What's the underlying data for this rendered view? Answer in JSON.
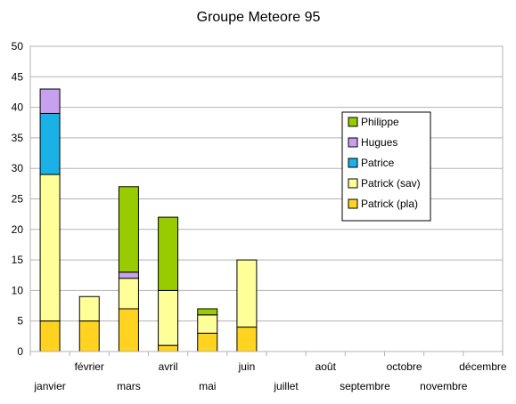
{
  "chart_data": {
    "type": "bar",
    "stacked": true,
    "title": "Groupe Meteore 95",
    "xlabel": "",
    "ylabel": "",
    "ylim": [
      0,
      50
    ],
    "yticks": [
      "0",
      "5",
      "10",
      "15",
      "20",
      "25",
      "30",
      "35",
      "40",
      "45",
      "50"
    ],
    "grid": true,
    "legend_position": "right",
    "categories": [
      "janvier",
      "février",
      "mars",
      "avril",
      "mai",
      "juin",
      "juillet",
      "août",
      "septembre",
      "octobre",
      "novembre",
      "décembre"
    ],
    "series": [
      {
        "name": "Patrick (pla)",
        "color": "#ffd320",
        "values": [
          5,
          5,
          7,
          1,
          3,
          4,
          0,
          0,
          0,
          0,
          0,
          0
        ]
      },
      {
        "name": "Patrick (sav)",
        "color": "#ffff99",
        "values": [
          24,
          4,
          5,
          9,
          3,
          11,
          0,
          0,
          0,
          0,
          0,
          0
        ]
      },
      {
        "name": "Patrice",
        "color": "#1ab2e6",
        "values": [
          10,
          0,
          0,
          0,
          0,
          0,
          0,
          0,
          0,
          0,
          0,
          0
        ]
      },
      {
        "name": "Hugues",
        "color": "#c8a0f0",
        "values": [
          4,
          0,
          1,
          0,
          0,
          0,
          0,
          0,
          0,
          0,
          0,
          0
        ]
      },
      {
        "name": "Philippe",
        "color": "#99cc00",
        "values": [
          0,
          0,
          14,
          12,
          1,
          0,
          0,
          0,
          0,
          0,
          0,
          0
        ]
      }
    ],
    "legend_order": [
      "Philippe",
      "Hugues",
      "Patrice",
      "Patrick (sav)",
      "Patrick (pla)"
    ]
  }
}
